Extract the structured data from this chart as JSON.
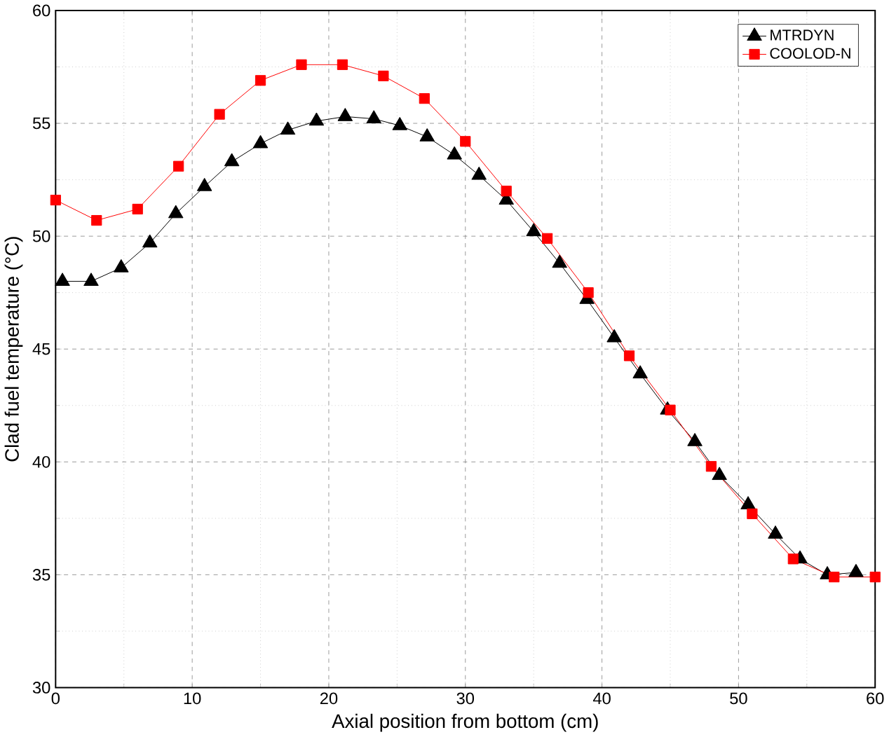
{
  "chart_data": {
    "type": "line",
    "xlabel": "Axial position from bottom (cm)",
    "ylabel": "Clad fuel temperature (°C)",
    "xlim": [
      0,
      60
    ],
    "ylim": [
      30,
      60
    ],
    "xticks": [
      0,
      10,
      20,
      30,
      40,
      50,
      60
    ],
    "yticks": [
      30,
      35,
      40,
      45,
      50,
      55,
      60
    ],
    "grid": true,
    "legend": "top right",
    "series": [
      {
        "name": "MTRDYN",
        "color": "#000000",
        "marker": "triangle",
        "x": [
          0.5,
          2.6,
          4.8,
          6.9,
          8.8,
          10.9,
          12.9,
          15.0,
          17.0,
          19.1,
          21.2,
          23.3,
          25.2,
          27.2,
          29.2,
          31.0,
          33.0,
          35.0,
          36.9,
          38.9,
          40.9,
          42.8,
          44.8,
          46.8,
          48.6,
          50.7,
          52.7,
          54.5,
          56.5,
          58.6
        ],
        "values": [
          48.0,
          48.0,
          48.6,
          49.7,
          51.0,
          52.2,
          53.3,
          54.1,
          54.7,
          55.1,
          55.3,
          55.2,
          54.9,
          54.4,
          53.6,
          52.7,
          51.6,
          50.2,
          48.8,
          47.2,
          45.5,
          43.9,
          42.3,
          40.9,
          39.4,
          38.1,
          36.8,
          35.7,
          35.0,
          35.1
        ]
      },
      {
        "name": "COOLOD-N",
        "color": "#ff0000",
        "marker": "square",
        "x": [
          0,
          3,
          6,
          9,
          12,
          15,
          18,
          21,
          24,
          27,
          30,
          33,
          36,
          39,
          42,
          45,
          48,
          51,
          54,
          57,
          60
        ],
        "values": [
          51.6,
          50.7,
          51.2,
          53.1,
          55.4,
          56.9,
          57.6,
          57.6,
          57.1,
          56.1,
          54.2,
          52.0,
          49.9,
          47.5,
          44.7,
          42.3,
          39.8,
          37.7,
          35.7,
          34.9,
          34.9
        ]
      }
    ]
  }
}
